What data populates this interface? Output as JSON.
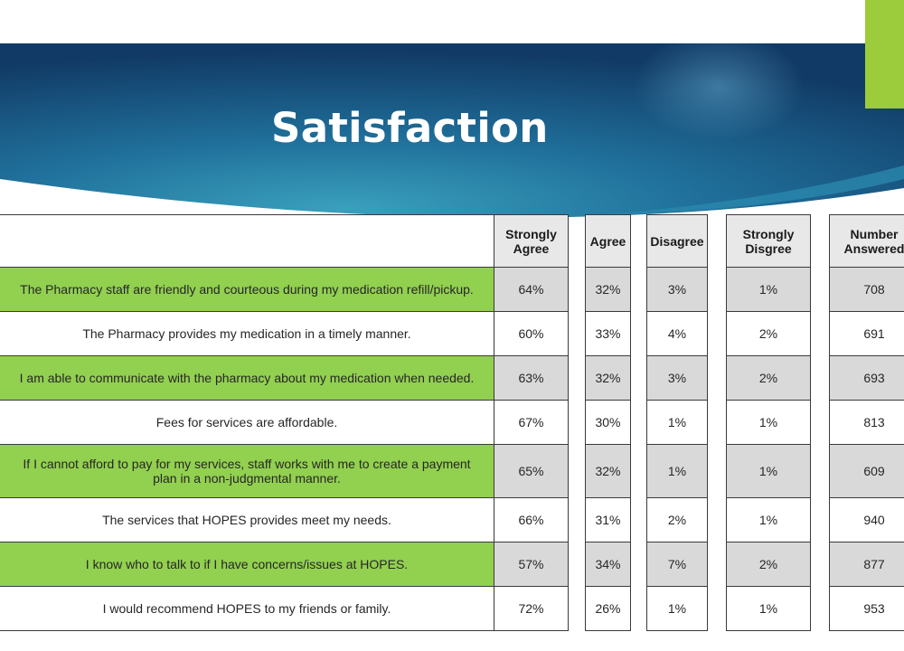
{
  "title": "Satisfaction",
  "colors": {
    "banner_dark": "#12426b",
    "banner_light": "#2e8fb0",
    "accent": "#9ccc3b",
    "row_green": "#92d050",
    "cell_gray": "#d9d9d9",
    "header_gray": "#e8e8e8"
  },
  "table": {
    "headers": {
      "statement": "",
      "strongly_agree": "Strongly Agree",
      "agree": "Agree",
      "disagree": "Disagree",
      "strongly_disagree": "Strongly Disgree",
      "number_answered": "Number Answered"
    },
    "rows": [
      {
        "statement": "The Pharmacy staff are friendly and courteous during my medication refill/pickup.",
        "strongly_agree": "64%",
        "agree": "32%",
        "disagree": "3%",
        "strongly_disagree": "1%",
        "number_answered": "708"
      },
      {
        "statement": "The Pharmacy provides my medication in a timely manner.",
        "strongly_agree": "60%",
        "agree": "33%",
        "disagree": "4%",
        "strongly_disagree": "2%",
        "number_answered": "691"
      },
      {
        "statement": "I am able to communicate with the pharmacy about my medication when needed.",
        "strongly_agree": "63%",
        "agree": "32%",
        "disagree": "3%",
        "strongly_disagree": "2%",
        "number_answered": "693"
      },
      {
        "statement": "Fees for services are affordable.",
        "strongly_agree": "67%",
        "agree": "30%",
        "disagree": "1%",
        "strongly_disagree": "1%",
        "number_answered": "813"
      },
      {
        "statement": "If I cannot afford to pay for my services, staff works with me to create a payment plan in a non-judgmental manner.",
        "strongly_agree": "65%",
        "agree": "32%",
        "disagree": "1%",
        "strongly_disagree": "1%",
        "number_answered": "609"
      },
      {
        "statement": "The services that HOPES provides meet my needs.",
        "strongly_agree": "66%",
        "agree": "31%",
        "disagree": "2%",
        "strongly_disagree": "1%",
        "number_answered": "940"
      },
      {
        "statement": "I know who to talk to if I have concerns/issues at HOPES.",
        "strongly_agree": "57%",
        "agree": "34%",
        "disagree": "7%",
        "strongly_disagree": "2%",
        "number_answered": "877"
      },
      {
        "statement": "I would recommend HOPES to my friends or family.",
        "strongly_agree": "72%",
        "agree": "26%",
        "disagree": "1%",
        "strongly_disagree": "1%",
        "number_answered": "953"
      }
    ]
  }
}
